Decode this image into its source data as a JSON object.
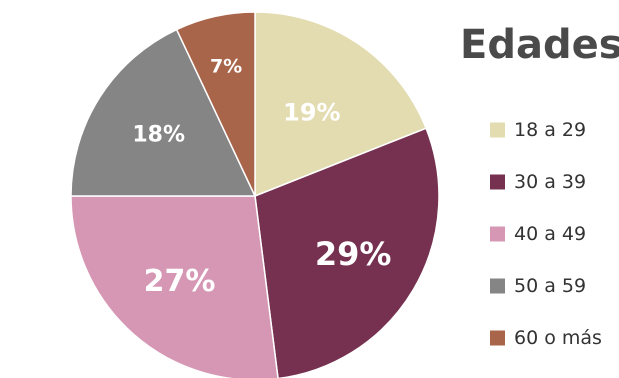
{
  "chart_data": {
    "type": "pie",
    "title": "Edades",
    "legend": "right",
    "categories": [
      "18 a 29",
      "30 a 39",
      "40 a 49",
      "50 a 59",
      "60 o  más"
    ],
    "values": [
      19,
      29,
      27,
      18,
      7
    ],
    "data_labels": [
      "19%",
      "29%",
      "27%",
      "18%",
      "7%"
    ],
    "colors": [
      "#e3dcb1",
      "#75314f",
      "#d597b3",
      "#858585",
      "#a9654a"
    ],
    "start": "top",
    "direction": "clockwise"
  }
}
